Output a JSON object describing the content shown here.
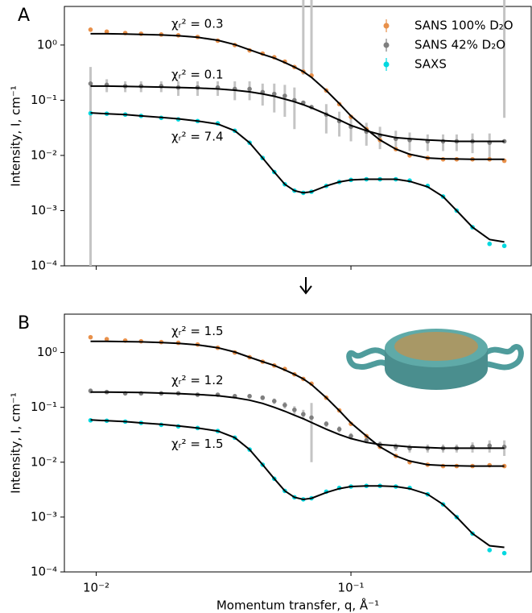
{
  "chart_data": [
    {
      "type": "scatter",
      "label": "A",
      "ylabel": "Intensity, I, cm⁻¹",
      "xscale": "log",
      "yscale": "log",
      "legend": "upper right",
      "show_xtick_labels": false,
      "xlim": [
        0.0075,
        0.51
      ],
      "ylim": [
        0.0001,
        5
      ],
      "xticks": [
        {
          "value": 0.01,
          "label": "10⁻²"
        },
        {
          "value": 0.1,
          "label": "10⁻¹"
        }
      ],
      "yticks": [
        {
          "value": 0.0001,
          "label": "10⁻⁴"
        },
        {
          "value": 0.001,
          "label": "10⁻³"
        },
        {
          "value": 0.01,
          "label": "10⁻²"
        },
        {
          "value": 0.1,
          "label": "10⁻¹"
        },
        {
          "value": 1,
          "label": "10⁰"
        }
      ],
      "x": [
        0.0095,
        0.011,
        0.013,
        0.015,
        0.018,
        0.021,
        0.025,
        0.03,
        0.035,
        0.04,
        0.045,
        0.05,
        0.055,
        0.06,
        0.065,
        0.07,
        0.08,
        0.09,
        0.1,
        0.115,
        0.13,
        0.15,
        0.17,
        0.2,
        0.23,
        0.26,
        0.3,
        0.35,
        0.4
      ],
      "annotations": [
        "χᵣ² = 0.3",
        "χᵣ² = 0.1",
        "χᵣ² = 7.4"
      ],
      "fit_color": "#000000",
      "series": [
        {
          "name": "SANS 100% D₂O",
          "color": "#e8904a",
          "values": [
            1.9,
            1.75,
            1.65,
            1.6,
            1.55,
            1.5,
            1.4,
            1.2,
            1.0,
            0.8,
            0.7,
            0.6,
            0.5,
            0.4,
            0.33,
            0.28,
            0.15,
            0.085,
            0.05,
            0.03,
            0.019,
            0.013,
            0.01,
            0.009,
            0.0085,
            0.0085,
            0.0085,
            0.0085,
            0.008
          ],
          "fit": [
            1.6,
            1.6,
            1.58,
            1.56,
            1.52,
            1.47,
            1.38,
            1.22,
            1.02,
            0.82,
            0.68,
            0.58,
            0.48,
            0.4,
            0.33,
            0.26,
            0.15,
            0.087,
            0.052,
            0.03,
            0.019,
            0.013,
            0.0105,
            0.009,
            0.0087,
            0.0086,
            0.0085,
            0.0085,
            0.0085
          ]
        },
        {
          "name": "SANS 42% D₂O",
          "color": "#7f7f7f",
          "values": [
            0.2,
            0.19,
            0.18,
            0.18,
            0.18,
            0.17,
            0.17,
            0.17,
            0.16,
            0.16,
            0.14,
            0.13,
            0.12,
            0.1,
            0.09,
            0.075,
            0.055,
            0.042,
            0.033,
            0.027,
            0.023,
            0.02,
            0.019,
            0.018,
            0.018,
            0.018,
            0.018,
            0.017,
            0.018
          ],
          "errors": [
            0.2,
            0.05,
            0.04,
            0.04,
            0.04,
            0.05,
            0.05,
            0.05,
            0.06,
            0.06,
            0.06,
            0.07,
            0.07,
            0.07,
            0.2,
            0.2,
            0.03,
            0.02,
            0.015,
            0.012,
            0.01,
            0.008,
            0.007,
            0.006,
            0.006,
            0.006,
            0.007,
            0.008,
            0.03
          ],
          "fit": [
            0.18,
            0.18,
            0.178,
            0.176,
            0.173,
            0.17,
            0.166,
            0.16,
            0.152,
            0.142,
            0.13,
            0.118,
            0.105,
            0.094,
            0.083,
            0.073,
            0.056,
            0.044,
            0.035,
            0.028,
            0.024,
            0.021,
            0.02,
            0.019,
            0.0185,
            0.018,
            0.018,
            0.018,
            0.018
          ]
        },
        {
          "name": "SAXS",
          "color": "#00d8e0",
          "values": [
            0.058,
            0.057,
            0.055,
            0.052,
            0.048,
            0.045,
            0.042,
            0.038,
            0.028,
            0.017,
            0.009,
            0.005,
            0.003,
            0.0023,
            0.0021,
            0.0022,
            0.0028,
            0.0033,
            0.0036,
            0.0037,
            0.0037,
            0.0037,
            0.0035,
            0.0028,
            0.0018,
            0.001,
            0.0005,
            0.00025,
            0.00023
          ],
          "fit": [
            0.059,
            0.057,
            0.055,
            0.052,
            0.049,
            0.046,
            0.042,
            0.037,
            0.028,
            0.017,
            0.009,
            0.005,
            0.003,
            0.0023,
            0.0021,
            0.0022,
            0.0028,
            0.0033,
            0.0036,
            0.0037,
            0.0037,
            0.0037,
            0.0034,
            0.0027,
            0.0018,
            0.001,
            0.0005,
            0.0003,
            0.00027
          ]
        }
      ]
    },
    {
      "type": "scatter",
      "label": "B",
      "ylabel": "Intensity, I, cm⁻¹",
      "xlabel": "Momentum transfer, q, Å⁻¹",
      "xscale": "log",
      "yscale": "log",
      "show_xtick_labels": true,
      "xlim": [
        0.0075,
        0.51
      ],
      "ylim": [
        0.0001,
        5
      ],
      "xticks": [
        {
          "value": 0.01,
          "label": "10⁻²"
        },
        {
          "value": 0.1,
          "label": "10⁻¹"
        }
      ],
      "yticks": [
        {
          "value": 0.0001,
          "label": "10⁻⁴"
        },
        {
          "value": 0.001,
          "label": "10⁻³"
        },
        {
          "value": 0.01,
          "label": "10⁻²"
        },
        {
          "value": 0.1,
          "label": "10⁻¹"
        },
        {
          "value": 1,
          "label": "10⁰"
        }
      ],
      "x": [
        0.0095,
        0.011,
        0.013,
        0.015,
        0.018,
        0.021,
        0.025,
        0.03,
        0.035,
        0.04,
        0.045,
        0.05,
        0.055,
        0.06,
        0.065,
        0.07,
        0.08,
        0.09,
        0.1,
        0.115,
        0.13,
        0.15,
        0.17,
        0.2,
        0.23,
        0.26,
        0.3,
        0.35,
        0.4
      ],
      "annotations": [
        "χᵣ² = 1.5",
        "χᵣ² = 1.2",
        "χᵣ² = 1.5"
      ],
      "fit_color": "#000000",
      "series": [
        {
          "color": "#e8904a",
          "values": [
            1.9,
            1.75,
            1.65,
            1.6,
            1.55,
            1.5,
            1.4,
            1.22,
            1.0,
            0.82,
            0.68,
            0.58,
            0.5,
            0.4,
            0.33,
            0.27,
            0.15,
            0.088,
            0.05,
            0.03,
            0.019,
            0.013,
            0.01,
            0.009,
            0.0085,
            0.0085,
            0.0085,
            0.0088,
            0.0085
          ],
          "fit": [
            1.6,
            1.6,
            1.58,
            1.56,
            1.52,
            1.47,
            1.38,
            1.22,
            1.02,
            0.82,
            0.68,
            0.58,
            0.48,
            0.4,
            0.33,
            0.26,
            0.15,
            0.087,
            0.052,
            0.03,
            0.019,
            0.013,
            0.0105,
            0.009,
            0.0087,
            0.0086,
            0.0085,
            0.0085,
            0.0085
          ]
        },
        {
          "color": "#7f7f7f",
          "values": [
            0.2,
            0.19,
            0.18,
            0.18,
            0.18,
            0.18,
            0.17,
            0.17,
            0.16,
            0.16,
            0.15,
            0.13,
            0.11,
            0.09,
            0.075,
            0.065,
            0.05,
            0.04,
            0.03,
            0.025,
            0.021,
            0.019,
            0.018,
            0.018,
            0.018,
            0.018,
            0.019,
            0.02,
            0.019
          ],
          "errors": [
            0.02,
            0.015,
            0.015,
            0.015,
            0.015,
            0.015,
            0.015,
            0.015,
            0.015,
            0.015,
            0.015,
            0.015,
            0.015,
            0.015,
            0.015,
            0.055,
            0.006,
            0.005,
            0.004,
            0.003,
            0.003,
            0.003,
            0.003,
            0.003,
            0.003,
            0.003,
            0.004,
            0.005,
            0.006
          ],
          "fit": [
            0.19,
            0.19,
            0.188,
            0.186,
            0.182,
            0.178,
            0.172,
            0.163,
            0.15,
            0.135,
            0.118,
            0.1,
            0.085,
            0.072,
            0.062,
            0.053,
            0.04,
            0.032,
            0.027,
            0.023,
            0.021,
            0.02,
            0.019,
            0.0185,
            0.018,
            0.018,
            0.018,
            0.018,
            0.018
          ]
        },
        {
          "color": "#00d8e0",
          "values": [
            0.058,
            0.057,
            0.055,
            0.052,
            0.048,
            0.045,
            0.042,
            0.037,
            0.028,
            0.017,
            0.009,
            0.005,
            0.003,
            0.0023,
            0.0021,
            0.0022,
            0.0029,
            0.0034,
            0.0036,
            0.0037,
            0.0037,
            0.0036,
            0.0034,
            0.0026,
            0.0017,
            0.001,
            0.0005,
            0.00025,
            0.00022
          ],
          "fit": [
            0.059,
            0.057,
            0.055,
            0.052,
            0.049,
            0.046,
            0.042,
            0.037,
            0.028,
            0.017,
            0.009,
            0.005,
            0.003,
            0.0023,
            0.0021,
            0.0022,
            0.0028,
            0.0033,
            0.0036,
            0.0037,
            0.0037,
            0.0036,
            0.0033,
            0.0026,
            0.0017,
            0.001,
            0.0005,
            0.0003,
            0.00028
          ]
        }
      ]
    }
  ]
}
